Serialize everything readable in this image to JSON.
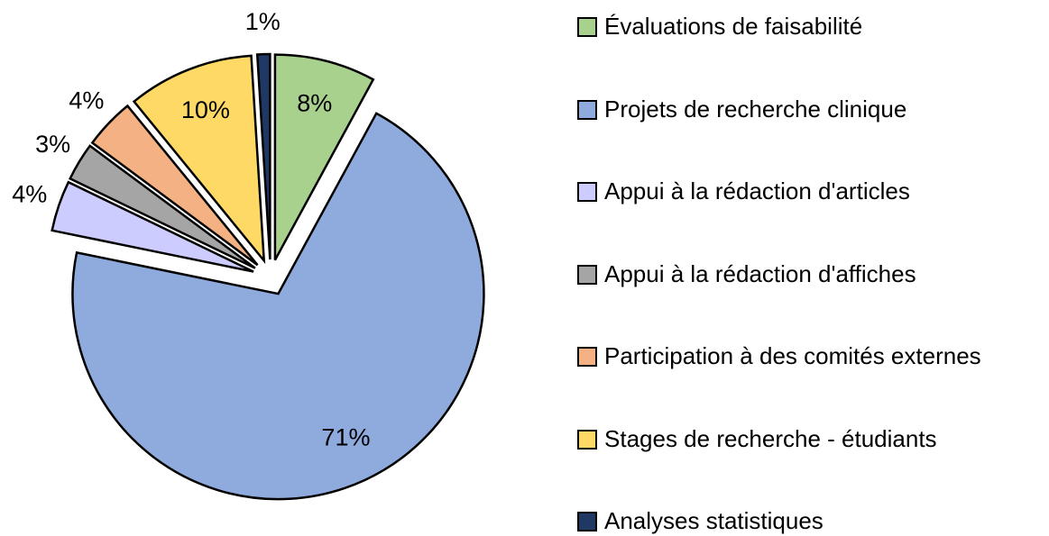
{
  "chart_data": {
    "type": "pie",
    "categories": [
      "Évaluations de faisabilité",
      "Projets de recherche clinique",
      "Appui à la rédaction d'articles",
      "Appui à la rédaction d'affiches",
      "Participation à des comités externes",
      "Stages de recherche - étudiants",
      "Analyses statistiques"
    ],
    "values": [
      8,
      71,
      4,
      3,
      4,
      10,
      1
    ],
    "value_labels": [
      "8%",
      "71%",
      "4%",
      "3%",
      "4%",
      "10%",
      "1%"
    ],
    "colors": [
      "#a9d18e",
      "#8faadc",
      "#ccccff",
      "#a5a5a5",
      "#f4b183",
      "#ffd966",
      "#203864"
    ],
    "legend": "right"
  }
}
